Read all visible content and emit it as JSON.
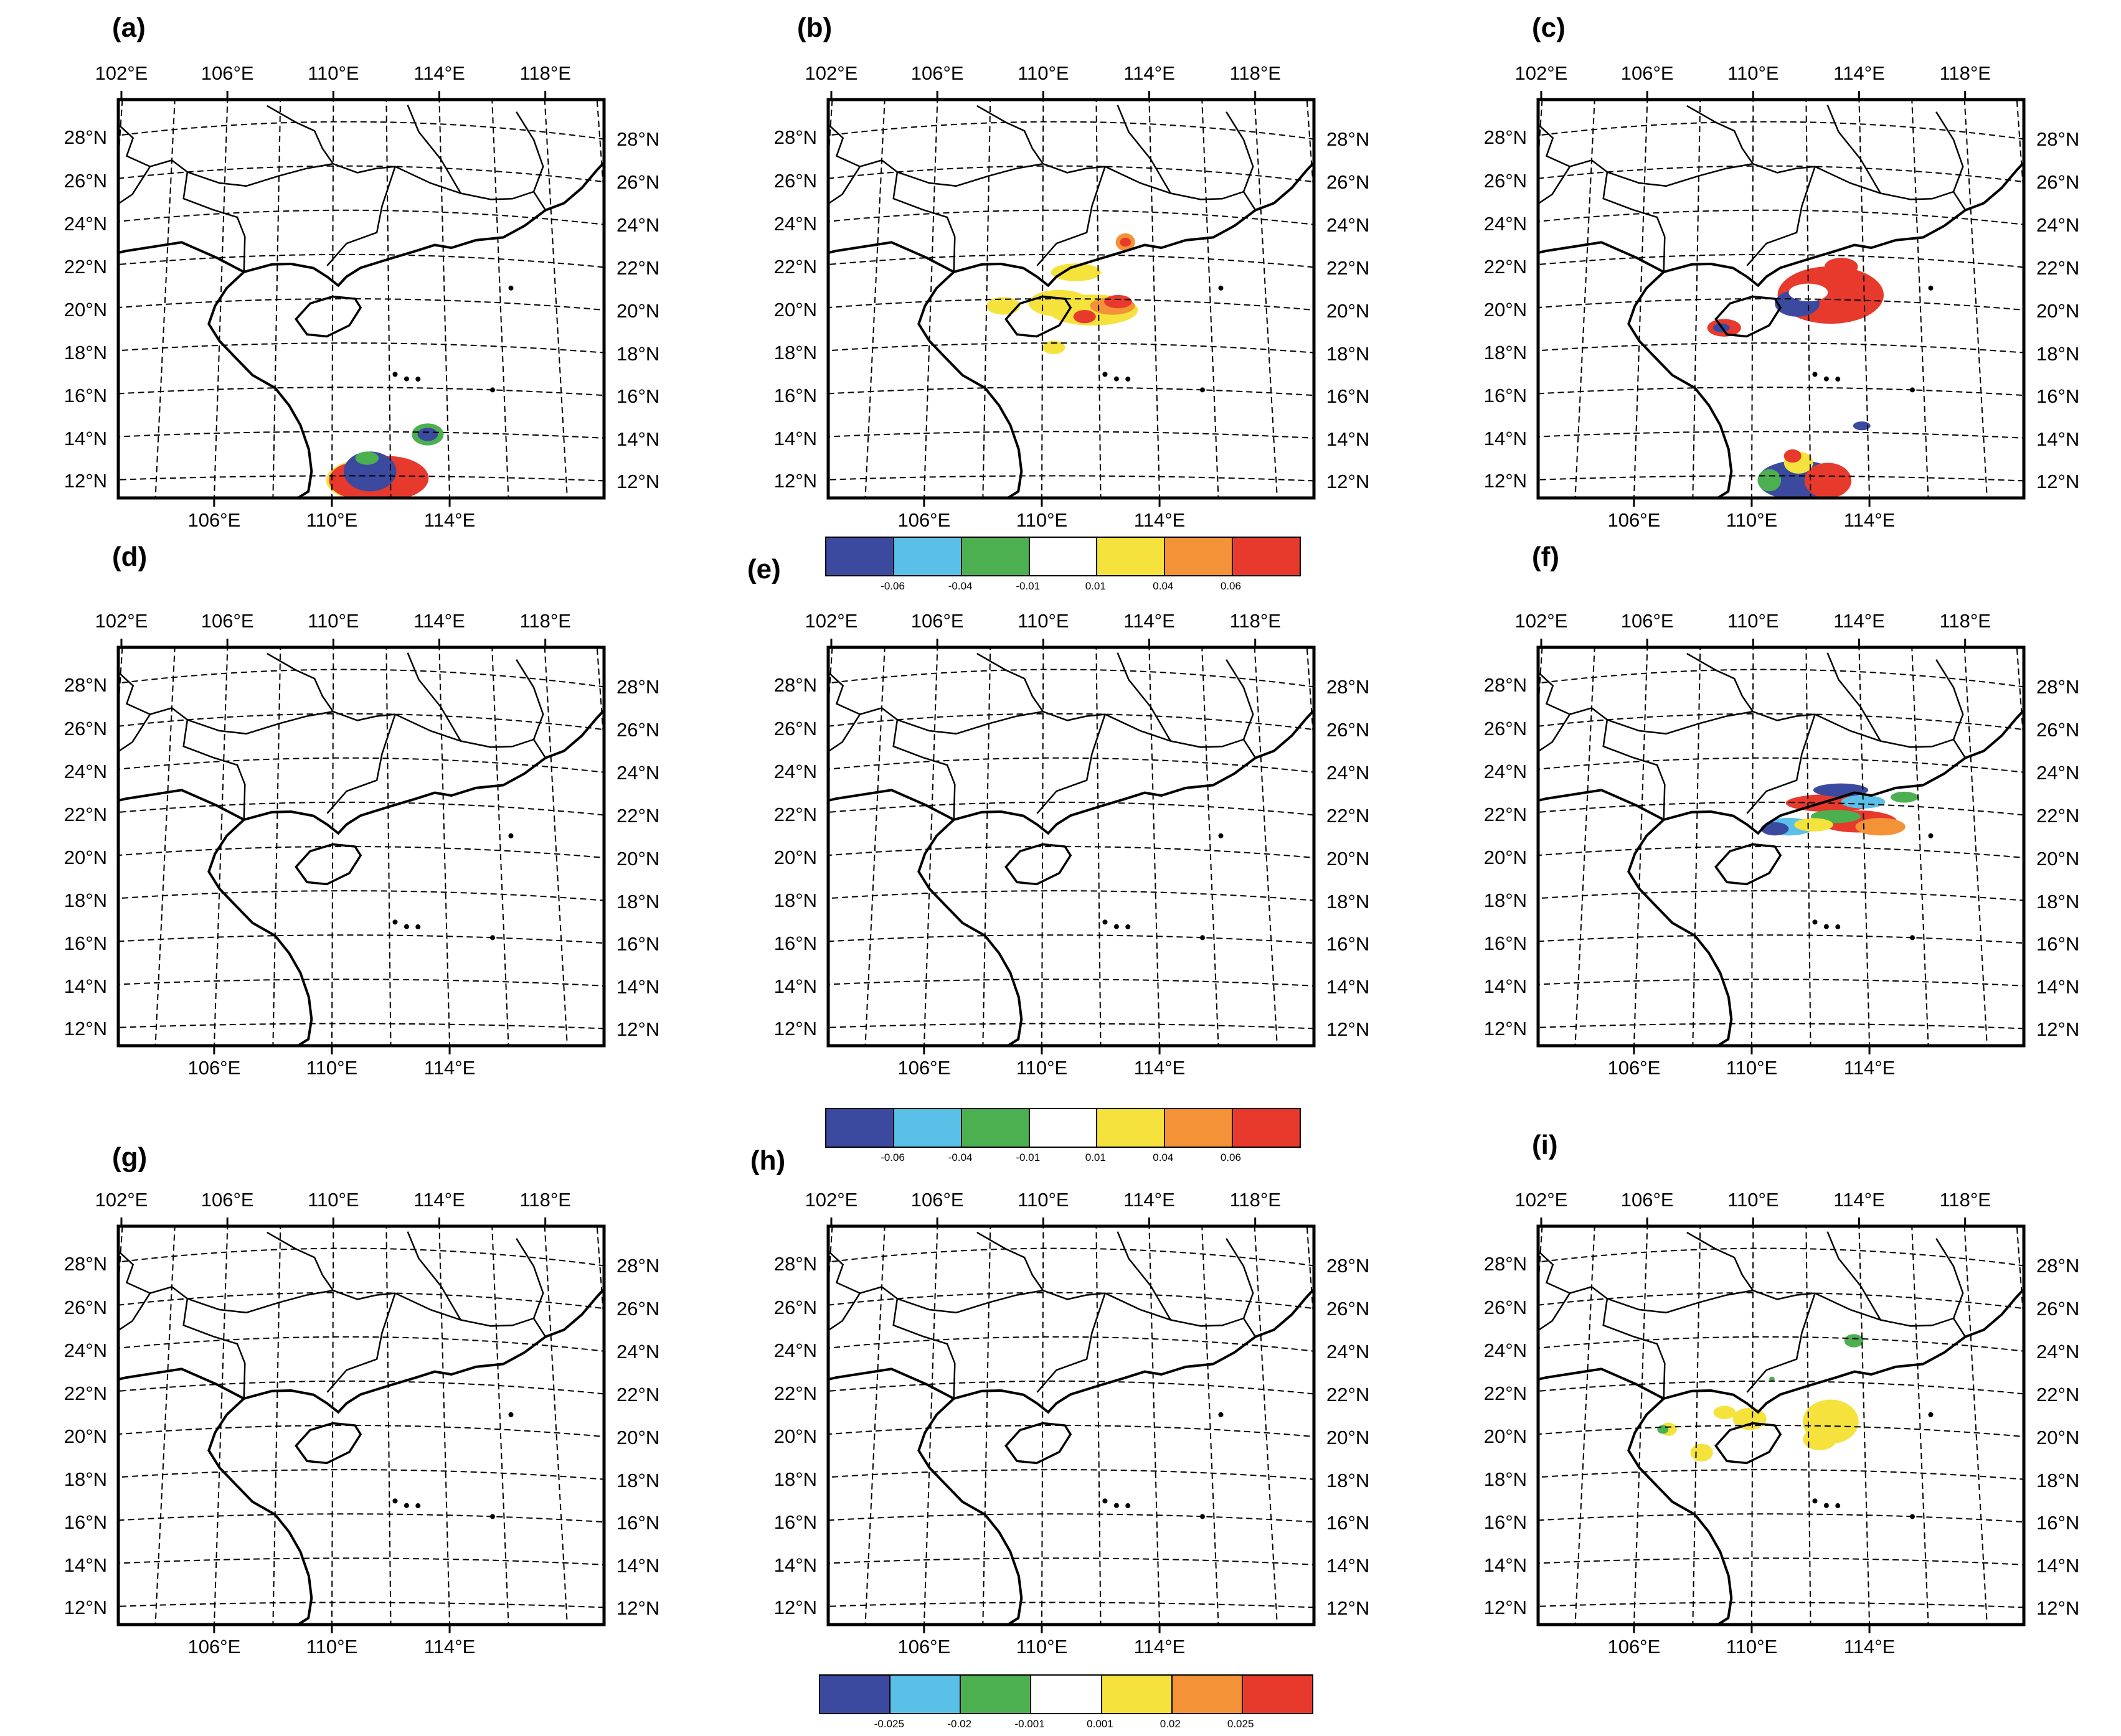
{
  "panels": [
    {
      "id": "a",
      "label": "(a)",
      "top_labels": [
        "102°E",
        "106°E",
        "110°E",
        "114°E",
        "118°E"
      ],
      "bottom_labels": [
        "106°E",
        "110°E",
        "114°E"
      ],
      "lat_labels": [
        "28°N",
        "26°N",
        "24°N",
        "22°N",
        "20°N",
        "18°N",
        "16°N",
        "14°N",
        "12°N"
      ],
      "field": "a"
    },
    {
      "id": "b",
      "label": "(b)",
      "top_labels": [
        "102°E",
        "106°E",
        "110°E",
        "114°E",
        "118°E"
      ],
      "bottom_labels": [
        "106°E",
        "110°E",
        "114°E"
      ],
      "lat_labels": [
        "28°N",
        "26°N",
        "24°N",
        "22°N",
        "20°N",
        "18°N",
        "16°N",
        "14°N",
        "12°N"
      ],
      "field": "b"
    },
    {
      "id": "c",
      "label": "(c)",
      "top_labels": [
        "102°E",
        "106°E",
        "110°E",
        "114°E",
        "118°E"
      ],
      "bottom_labels": [
        "106°E",
        "110°E",
        "114°E"
      ],
      "lat_labels": [
        "28°N",
        "26°N",
        "24°N",
        "22°N",
        "20°N",
        "18°N",
        "16°N",
        "14°N",
        "12°N"
      ],
      "field": "c"
    },
    {
      "id": "d",
      "label": "(d)",
      "top_labels": [
        "102°E",
        "106°E",
        "110°E",
        "114°E",
        "118°E"
      ],
      "bottom_labels": [
        "106°E",
        "110°E",
        "114°E"
      ],
      "lat_labels": [
        "28°N",
        "26°N",
        "24°N",
        "22°N",
        "20°N",
        "18°N",
        "16°N",
        "14°N",
        "12°N"
      ],
      "field": "none"
    },
    {
      "id": "e",
      "label": "(e)",
      "top_labels": [
        "102°E",
        "106°E",
        "110°E",
        "114°E",
        "118°E"
      ],
      "bottom_labels": [
        "106°E",
        "110°E",
        "114°E"
      ],
      "lat_labels": [
        "28°N",
        "26°N",
        "24°N",
        "22°N",
        "20°N",
        "18°N",
        "16°N",
        "14°N",
        "12°N"
      ],
      "field": "none"
    },
    {
      "id": "f",
      "label": "(f)",
      "top_labels": [
        "102°E",
        "106°E",
        "110°E",
        "114°E",
        "118°E"
      ],
      "bottom_labels": [
        "106°E",
        "110°E",
        "114°E"
      ],
      "lat_labels": [
        "28°N",
        "26°N",
        "24°N",
        "22°N",
        "20°N",
        "18°N",
        "16°N",
        "14°N",
        "12°N"
      ],
      "field": "f"
    },
    {
      "id": "g",
      "label": "(g)",
      "top_labels": [
        "102°E",
        "106°E",
        "110°E",
        "114°E",
        "118°E"
      ],
      "bottom_labels": [
        "106°E",
        "110°E",
        "114°E"
      ],
      "lat_labels": [
        "28°N",
        "26°N",
        "24°N",
        "22°N",
        "20°N",
        "18°N",
        "16°N",
        "14°N",
        "12°N"
      ],
      "field": "none"
    },
    {
      "id": "h",
      "label": "(h)",
      "top_labels": [
        "102°E",
        "106°E",
        "110°E",
        "114°E",
        "118°E"
      ],
      "bottom_labels": [
        "106°E",
        "110°E",
        "114°E"
      ],
      "lat_labels": [
        "28°N",
        "26°N",
        "24°N",
        "22°N",
        "20°N",
        "18°N",
        "16°N",
        "14°N",
        "12°N"
      ],
      "field": "none"
    },
    {
      "id": "i",
      "label": "(i)",
      "top_labels": [
        "102°E",
        "106°E",
        "110°E",
        "114°E",
        "118°E"
      ],
      "bottom_labels": [
        "106°E",
        "110°E",
        "114°E"
      ],
      "lat_labels": [
        "28°N",
        "26°N",
        "24°N",
        "22°N",
        "20°N",
        "18°N",
        "16°N",
        "14°N",
        "12°N"
      ],
      "field": "i"
    }
  ],
  "colorbars": [
    {
      "id": "cb1",
      "colors": [
        "#3b4a9e",
        "#5bc0e8",
        "#4cb050",
        "#ffffff",
        "#f5e23c",
        "#f39237",
        "#e8392d"
      ],
      "ticks": [
        "-0.06",
        "-0.04",
        "-0.01",
        "0.01",
        "0.04",
        "0.06"
      ]
    },
    {
      "id": "cb2",
      "colors": [
        "#3b4a9e",
        "#5bc0e8",
        "#4cb050",
        "#ffffff",
        "#f5e23c",
        "#f39237",
        "#e8392d"
      ],
      "ticks": [
        "-0.06",
        "-0.04",
        "-0.01",
        "0.01",
        "0.04",
        "0.06"
      ]
    },
    {
      "id": "cb3",
      "colors": [
        "#3b4a9e",
        "#5bc0e8",
        "#4cb050",
        "#ffffff",
        "#f5e23c",
        "#f39237",
        "#e8392d"
      ],
      "ticks": [
        "-0.025",
        "-0.02",
        "-0.001",
        "0.001",
        "0.02",
        "0.025"
      ]
    }
  ]
}
